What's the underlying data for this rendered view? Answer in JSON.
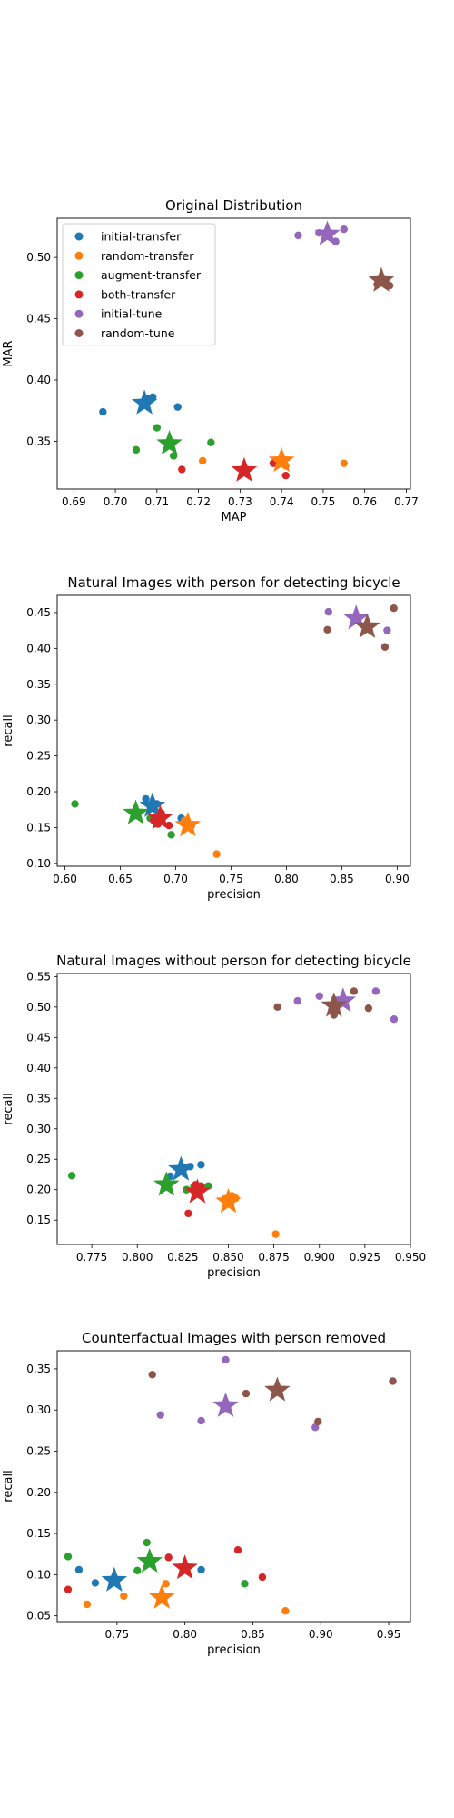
{
  "colors": {
    "initial-transfer": "#1f77b4",
    "random-transfer": "#ff7f0e",
    "augment-transfer": "#2ca02c",
    "both-transfer": "#d62728",
    "initial-tune": "#9467bd",
    "random-tune": "#8c564b"
  },
  "chart_data": [
    {
      "type": "scatter",
      "title": "Original Distribution",
      "xlabel": "MAP",
      "ylabel": "MAR",
      "xlim": [
        0.686,
        0.771
      ],
      "ylim": [
        0.311,
        0.532
      ],
      "xticks": [
        "0.69",
        "0.70",
        "0.71",
        "0.72",
        "0.73",
        "0.74",
        "0.75",
        "0.76",
        "0.77"
      ],
      "yticks": [
        "0.35",
        "0.40",
        "0.45",
        "0.50"
      ],
      "legend": "top-left",
      "series": [
        {
          "name": "initial-transfer",
          "points": [
            [
              0.697,
              0.374
            ],
            [
              0.709,
              0.386
            ],
            [
              0.715,
              0.378
            ],
            [
              0.708,
              0.385
            ]
          ],
          "mean": [
            0.707,
            0.381
          ]
        },
        {
          "name": "random-transfer",
          "points": [
            [
              0.721,
              0.334
            ],
            [
              0.741,
              0.33
            ],
            [
              0.755,
              0.332
            ],
            [
              0.739,
              0.334
            ]
          ],
          "mean": [
            0.74,
            0.334
          ]
        },
        {
          "name": "augment-transfer",
          "points": [
            [
              0.705,
              0.343
            ],
            [
              0.71,
              0.361
            ],
            [
              0.714,
              0.338
            ],
            [
              0.723,
              0.349
            ]
          ],
          "mean": [
            0.713,
            0.348
          ]
        },
        {
          "name": "both-transfer",
          "points": [
            [
              0.716,
              0.327
            ],
            [
              0.731,
              0.327
            ],
            [
              0.738,
              0.332
            ],
            [
              0.741,
              0.322
            ]
          ],
          "mean": [
            0.731,
            0.326
          ]
        },
        {
          "name": "initial-tune",
          "points": [
            [
              0.744,
              0.518
            ],
            [
              0.753,
              0.513
            ],
            [
              0.755,
              0.523
            ],
            [
              0.749,
              0.52
            ]
          ],
          "mean": [
            0.751,
            0.519
          ]
        },
        {
          "name": "random-tune",
          "points": [
            [
              0.766,
              0.477
            ],
            [
              0.763,
              0.478
            ],
            [
              0.764,
              0.48
            ],
            [
              0.765,
              0.481
            ]
          ],
          "mean": [
            0.764,
            0.481
          ]
        }
      ]
    },
    {
      "type": "scatter",
      "title": "Natural Images with person for detecting bicycle",
      "xlabel": "precision",
      "ylabel": "recall",
      "xlim": [
        0.593,
        0.912
      ],
      "ylim": [
        0.096,
        0.474
      ],
      "xticks": [
        "0.60",
        "0.65",
        "0.70",
        "0.75",
        "0.80",
        "0.85",
        "0.90"
      ],
      "yticks": [
        "0.10",
        "0.15",
        "0.20",
        "0.25",
        "0.30",
        "0.35",
        "0.40",
        "0.45"
      ],
      "series": [
        {
          "name": "initial-transfer",
          "points": [
            [
              0.673,
              0.19
            ],
            [
              0.683,
              0.183
            ],
            [
              0.705,
              0.163
            ]
          ],
          "mean": [
            0.679,
            0.18
          ]
        },
        {
          "name": "random-transfer",
          "points": [
            [
              0.708,
              0.16
            ],
            [
              0.714,
              0.152
            ],
            [
              0.737,
              0.113
            ]
          ],
          "mean": [
            0.711,
            0.153
          ]
        },
        {
          "name": "augment-transfer",
          "points": [
            [
              0.609,
              0.183
            ],
            [
              0.677,
              0.163
            ],
            [
              0.696,
              0.14
            ]
          ],
          "mean": [
            0.664,
            0.17
          ]
        },
        {
          "name": "both-transfer",
          "points": [
            [
              0.68,
              0.16
            ],
            [
              0.687,
              0.17
            ],
            [
              0.688,
              0.165
            ],
            [
              0.684,
              0.155
            ],
            [
              0.694,
              0.153
            ]
          ],
          "mean": [
            0.686,
            0.163
          ]
        },
        {
          "name": "initial-tune",
          "points": [
            [
              0.838,
              0.451
            ],
            [
              0.891,
              0.425
            ],
            [
              0.862,
              0.44
            ]
          ],
          "mean": [
            0.863,
            0.442
          ]
        },
        {
          "name": "random-tune",
          "points": [
            [
              0.837,
              0.426
            ],
            [
              0.889,
              0.402
            ],
            [
              0.897,
              0.456
            ]
          ],
          "mean": [
            0.873,
            0.43
          ]
        }
      ]
    },
    {
      "type": "scatter",
      "title": "Natural Images without person for detecting bicycle",
      "xlabel": "precision",
      "ylabel": "recall",
      "xlim": [
        0.756,
        0.95
      ],
      "ylim": [
        0.11,
        0.555
      ],
      "xticks": [
        "0.775",
        "0.800",
        "0.825",
        "0.850",
        "0.875",
        "0.900",
        "0.925",
        "0.950"
      ],
      "yticks": [
        "0.15",
        "0.20",
        "0.25",
        "0.30",
        "0.35",
        "0.40",
        "0.45",
        "0.50",
        "0.55"
      ],
      "series": [
        {
          "name": "initial-transfer",
          "points": [
            [
              0.818,
              0.222
            ],
            [
              0.829,
              0.238
            ],
            [
              0.835,
              0.241
            ],
            [
              0.826,
              0.236
            ]
          ],
          "mean": [
            0.824,
            0.233
          ]
        },
        {
          "name": "random-transfer",
          "points": [
            [
              0.848,
              0.185
            ],
            [
              0.854,
              0.186
            ],
            [
              0.876,
              0.127
            ],
            [
              0.852,
              0.19
            ]
          ],
          "mean": [
            0.85,
            0.18
          ]
        },
        {
          "name": "augment-transfer",
          "points": [
            [
              0.764,
              0.223
            ],
            [
              0.831,
              0.205
            ],
            [
              0.839,
              0.206
            ],
            [
              0.827,
              0.2
            ]
          ],
          "mean": [
            0.816,
            0.208
          ]
        },
        {
          "name": "both-transfer",
          "points": [
            [
              0.828,
              0.161
            ],
            [
              0.832,
              0.208
            ],
            [
              0.835,
              0.206
            ],
            [
              0.833,
              0.2
            ]
          ],
          "mean": [
            0.833,
            0.196
          ]
        },
        {
          "name": "initial-tune",
          "points": [
            [
              0.888,
              0.51
            ],
            [
              0.9,
              0.518
            ],
            [
              0.931,
              0.526
            ],
            [
              0.941,
              0.48
            ]
          ],
          "mean": [
            0.913,
            0.51
          ]
        },
        {
          "name": "random-tune",
          "points": [
            [
              0.877,
              0.5
            ],
            [
              0.908,
              0.487
            ],
            [
              0.919,
              0.526
            ],
            [
              0.927,
              0.498
            ]
          ],
          "mean": [
            0.908,
            0.502
          ]
        }
      ]
    },
    {
      "type": "scatter",
      "title": "Counterfactual Images with person removed",
      "xlabel": "precision",
      "ylabel": "recall",
      "xlim": [
        0.706,
        0.966
      ],
      "ylim": [
        0.043,
        0.372
      ],
      "xticks": [
        "0.75",
        "0.80",
        "0.85",
        "0.90",
        "0.95"
      ],
      "yticks": [
        "0.05",
        "0.10",
        "0.15",
        "0.20",
        "0.25",
        "0.30",
        "0.35"
      ],
      "series": [
        {
          "name": "initial-transfer",
          "points": [
            [
              0.722,
              0.106
            ],
            [
              0.734,
              0.09
            ],
            [
              0.812,
              0.106
            ]
          ],
          "mean": [
            0.748,
            0.093
          ]
        },
        {
          "name": "random-transfer",
          "points": [
            [
              0.728,
              0.064
            ],
            [
              0.755,
              0.074
            ],
            [
              0.786,
              0.089
            ],
            [
              0.874,
              0.056
            ]
          ],
          "mean": [
            0.783,
            0.072
          ]
        },
        {
          "name": "augment-transfer",
          "points": [
            [
              0.714,
              0.122
            ],
            [
              0.765,
              0.105
            ],
            [
              0.772,
              0.139
            ],
            [
              0.844,
              0.089
            ]
          ],
          "mean": [
            0.774,
            0.116
          ]
        },
        {
          "name": "both-transfer",
          "points": [
            [
              0.714,
              0.082
            ],
            [
              0.788,
              0.121
            ],
            [
              0.839,
              0.13
            ],
            [
              0.857,
              0.097
            ]
          ],
          "mean": [
            0.8,
            0.108
          ]
        },
        {
          "name": "initial-tune",
          "points": [
            [
              0.782,
              0.294
            ],
            [
              0.812,
              0.287
            ],
            [
              0.83,
              0.361
            ],
            [
              0.896,
              0.279
            ]
          ],
          "mean": [
            0.83,
            0.305
          ]
        },
        {
          "name": "random-tune",
          "points": [
            [
              0.776,
              0.343
            ],
            [
              0.845,
              0.32
            ],
            [
              0.898,
              0.286
            ],
            [
              0.953,
              0.335
            ]
          ],
          "mean": [
            0.868,
            0.324
          ]
        }
      ]
    }
  ]
}
